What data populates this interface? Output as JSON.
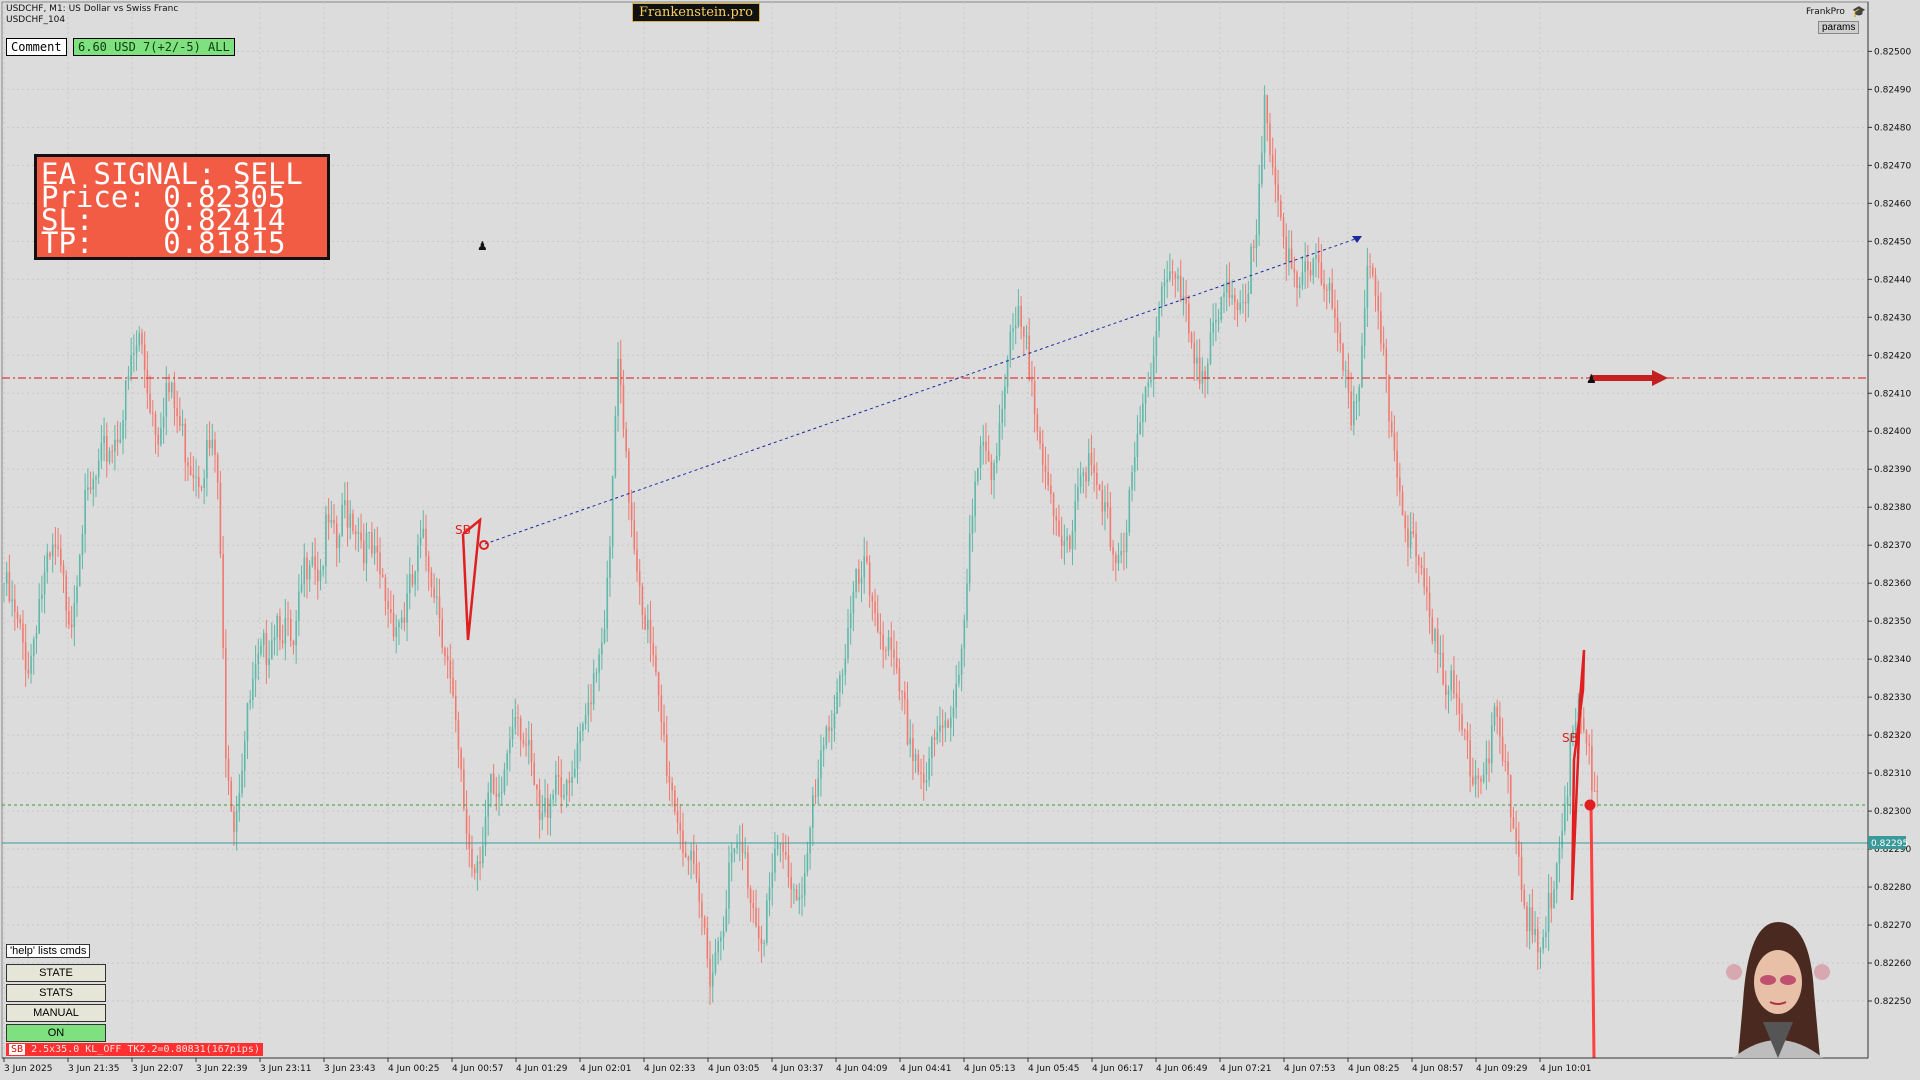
{
  "header": {
    "symbol_line": "USDCHF, M1:  US Dollar vs Swiss Franc",
    "account_line": "USDCHF_104",
    "brand": "Frankenstein.pro",
    "frankpro": "FrankPro",
    "params_label": "params"
  },
  "comment": {
    "label": "Comment",
    "status": "6.60 USD 7(+2/-5) ALL"
  },
  "signal": {
    "title": "EA SIGNAL: SELL",
    "price": "Price: 0.82305",
    "sl": "SL:    0.82414",
    "tp": "TP:    0.81815"
  },
  "buttons": {
    "help": "'help' lists cmds",
    "state": "STATE",
    "stats": "STATS",
    "manual": "MANUAL",
    "on": "ON"
  },
  "status_bar": {
    "tag": "SB",
    "text": "2.5x35.0 KL_OFF TK2.2=0.80831(167pips)"
  },
  "chart_data": {
    "type": "candlestick",
    "price_axis_ticks": [
      "0.82500",
      "0.82490",
      "0.82480",
      "0.82470",
      "0.82460",
      "0.82450",
      "0.82440",
      "0.82430",
      "0.82420",
      "0.82410",
      "0.82400",
      "0.82390",
      "0.82380",
      "0.82370",
      "0.82360",
      "0.82350",
      "0.82340",
      "0.82330",
      "0.82320",
      "0.82310",
      "0.82300",
      "0.82290",
      "0.82280",
      "0.82270",
      "0.82260",
      "0.82250"
    ],
    "y_range": [
      0.82245,
      0.82503
    ],
    "time_axis_ticks": [
      "3 Jun 2025",
      "3 Jun 21:35",
      "3 Jun 22:07",
      "3 Jun 22:39",
      "3 Jun 23:11",
      "3 Jun 23:43",
      "4 Jun 00:25",
      "4 Jun 00:57",
      "4 Jun 01:29",
      "4 Jun 02:01",
      "4 Jun 02:33",
      "4 Jun 03:05",
      "4 Jun 03:37",
      "4 Jun 04:09",
      "4 Jun 04:41",
      "4 Jun 05:13",
      "4 Jun 05:45",
      "4 Jun 06:17",
      "4 Jun 06:49",
      "4 Jun 07:21",
      "4 Jun 07:53",
      "4 Jun 08:25",
      "4 Jun 08:57",
      "4 Jun 09:29",
      "4 Jun 10:01"
    ],
    "current_price": "0.82295",
    "sl_level": 0.82414,
    "entry_level": 0.82305,
    "bid_level": 0.82295,
    "price_path": [
      0.8236,
      0.82352,
      0.82345,
      0.82338,
      0.82355,
      0.82362,
      0.82368,
      0.82358,
      0.82352,
      0.82375,
      0.82382,
      0.82388,
      0.82395,
      0.82398,
      0.82405,
      0.82418,
      0.82425,
      0.8241,
      0.824,
      0.82412,
      0.82406,
      0.82398,
      0.82392,
      0.8239,
      0.82395,
      0.82392,
      0.8232,
      0.82298,
      0.82315,
      0.8233,
      0.82338,
      0.82345,
      0.82352,
      0.82348,
      0.8234,
      0.8236,
      0.82372,
      0.82362,
      0.82375,
      0.82368,
      0.8238,
      0.82378,
      0.82372,
      0.82368,
      0.82362,
      0.82355,
      0.8235,
      0.82352,
      0.8236,
      0.8237,
      0.82365,
      0.82355,
      0.8234,
      0.8232,
      0.823,
      0.82285,
      0.82292,
      0.82305,
      0.82298,
      0.82315,
      0.8233,
      0.8232,
      0.82308,
      0.82295,
      0.82305,
      0.82312,
      0.82302,
      0.8231,
      0.8232,
      0.82335,
      0.82345,
      0.8236,
      0.82418,
      0.8239,
      0.82372,
      0.82355,
      0.8234,
      0.82325,
      0.8231,
      0.823,
      0.8229,
      0.8228,
      0.8227,
      0.82258,
      0.82268,
      0.82282,
      0.8229,
      0.82286,
      0.82275,
      0.82268,
      0.8228,
      0.8229,
      0.82285,
      0.82278,
      0.82284,
      0.823,
      0.82312,
      0.82325,
      0.82335,
      0.82345,
      0.82358,
      0.82362,
      0.82355,
      0.82348,
      0.8234,
      0.8233,
      0.82322,
      0.82315,
      0.82308,
      0.82315,
      0.8232,
      0.82325,
      0.82338,
      0.8236,
      0.82385,
      0.82395,
      0.82392,
      0.82405,
      0.8242,
      0.82428,
      0.8242,
      0.8241,
      0.82395,
      0.82375,
      0.82368,
      0.82372,
      0.82388,
      0.82392,
      0.82385,
      0.82378,
      0.82372,
      0.82368,
      0.82378,
      0.82395,
      0.8241,
      0.82425,
      0.8244,
      0.82442,
      0.82435,
      0.82428,
      0.8242,
      0.82415,
      0.82425,
      0.82432,
      0.82438,
      0.82436,
      0.8244,
      0.82448,
      0.82485,
      0.8247,
      0.82455,
      0.8244,
      0.82435,
      0.82442,
      0.82448,
      0.8244,
      0.8243,
      0.82415,
      0.82405,
      0.82412,
      0.82448,
      0.8243,
      0.82415,
      0.82398,
      0.82385,
      0.82372,
      0.82362,
      0.82355,
      0.82348,
      0.82338,
      0.8233,
      0.82322,
      0.82315,
      0.8231,
      0.82315,
      0.82322,
      0.82312,
      0.823,
      0.82285,
      0.8227,
      0.8226,
      0.82268,
      0.82285,
      0.823,
      0.82318,
      0.82325,
      0.82312,
      0.82305
    ]
  }
}
